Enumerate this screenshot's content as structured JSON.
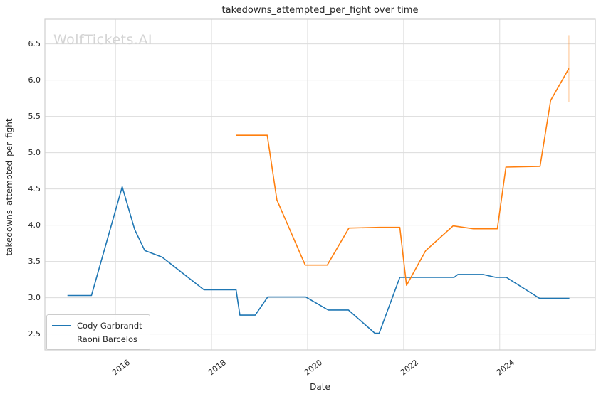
{
  "watermark": {
    "text": "WolfTickets.AI"
  },
  "colors": {
    "grid": "#dcdcdc",
    "spine": "#cfcfcf",
    "text": "#262626",
    "watermark": "#d4d4d4",
    "background": "#ffffff"
  },
  "chart_data": {
    "type": "line",
    "title": "takedowns_attempted_per_fight over time",
    "xlabel": "Date",
    "ylabel": "takedowns_attempted_per_fight",
    "x_unit": "decimal_year",
    "grid": true,
    "legend_position": "lower-left",
    "xlim": [
      2014.53,
      2025.99
    ],
    "ylim": [
      2.28,
      6.84
    ],
    "x_tick_values": [
      2016,
      2018,
      2020,
      2022,
      2024
    ],
    "x_tick_labels": [
      "2016",
      "2018",
      "2020",
      "2022",
      "2024"
    ],
    "y_tick_values": [
      2.5,
      3.0,
      3.5,
      4.0,
      4.5,
      5.0,
      5.5,
      6.0,
      6.5
    ],
    "series": [
      {
        "name": "Cody Garbrandt",
        "color": "#1f77b4",
        "points": [
          [
            2015.0,
            3.03
          ],
          [
            2015.5,
            3.03
          ],
          [
            2016.14,
            4.53
          ],
          [
            2016.4,
            3.94
          ],
          [
            2016.61,
            3.65
          ],
          [
            2016.97,
            3.56
          ],
          [
            2017.84,
            3.11
          ],
          [
            2018.51,
            3.11
          ],
          [
            2018.59,
            2.76
          ],
          [
            2018.91,
            2.76
          ],
          [
            2019.17,
            3.01
          ],
          [
            2019.96,
            3.01
          ],
          [
            2020.43,
            2.83
          ],
          [
            2020.85,
            2.83
          ],
          [
            2021.4,
            2.51
          ],
          [
            2021.49,
            2.51
          ],
          [
            2021.92,
            3.28
          ],
          [
            2023.05,
            3.28
          ],
          [
            2023.13,
            3.32
          ],
          [
            2023.65,
            3.32
          ],
          [
            2023.92,
            3.28
          ],
          [
            2024.14,
            3.28
          ],
          [
            2024.83,
            2.99
          ],
          [
            2025.45,
            2.99
          ]
        ]
      },
      {
        "name": "Raoni Barcelos",
        "color": "#ff7f0e",
        "points": [
          [
            2018.51,
            5.24
          ],
          [
            2019.16,
            5.24
          ],
          [
            2019.36,
            4.35
          ],
          [
            2019.95,
            3.45
          ],
          [
            2020.41,
            3.45
          ],
          [
            2020.86,
            3.96
          ],
          [
            2021.5,
            3.97
          ],
          [
            2021.92,
            3.97
          ],
          [
            2022.06,
            3.17
          ],
          [
            2022.46,
            3.65
          ],
          [
            2023.03,
            3.99
          ],
          [
            2023.45,
            3.95
          ],
          [
            2023.95,
            3.95
          ],
          [
            2024.13,
            4.8
          ],
          [
            2024.84,
            4.81
          ],
          [
            2025.06,
            5.72
          ],
          [
            2025.44,
            6.16
          ]
        ],
        "error_bar": {
          "x": 2025.44,
          "y_low": 5.7,
          "y_high": 6.62,
          "opacity": 0.3
        }
      }
    ]
  }
}
